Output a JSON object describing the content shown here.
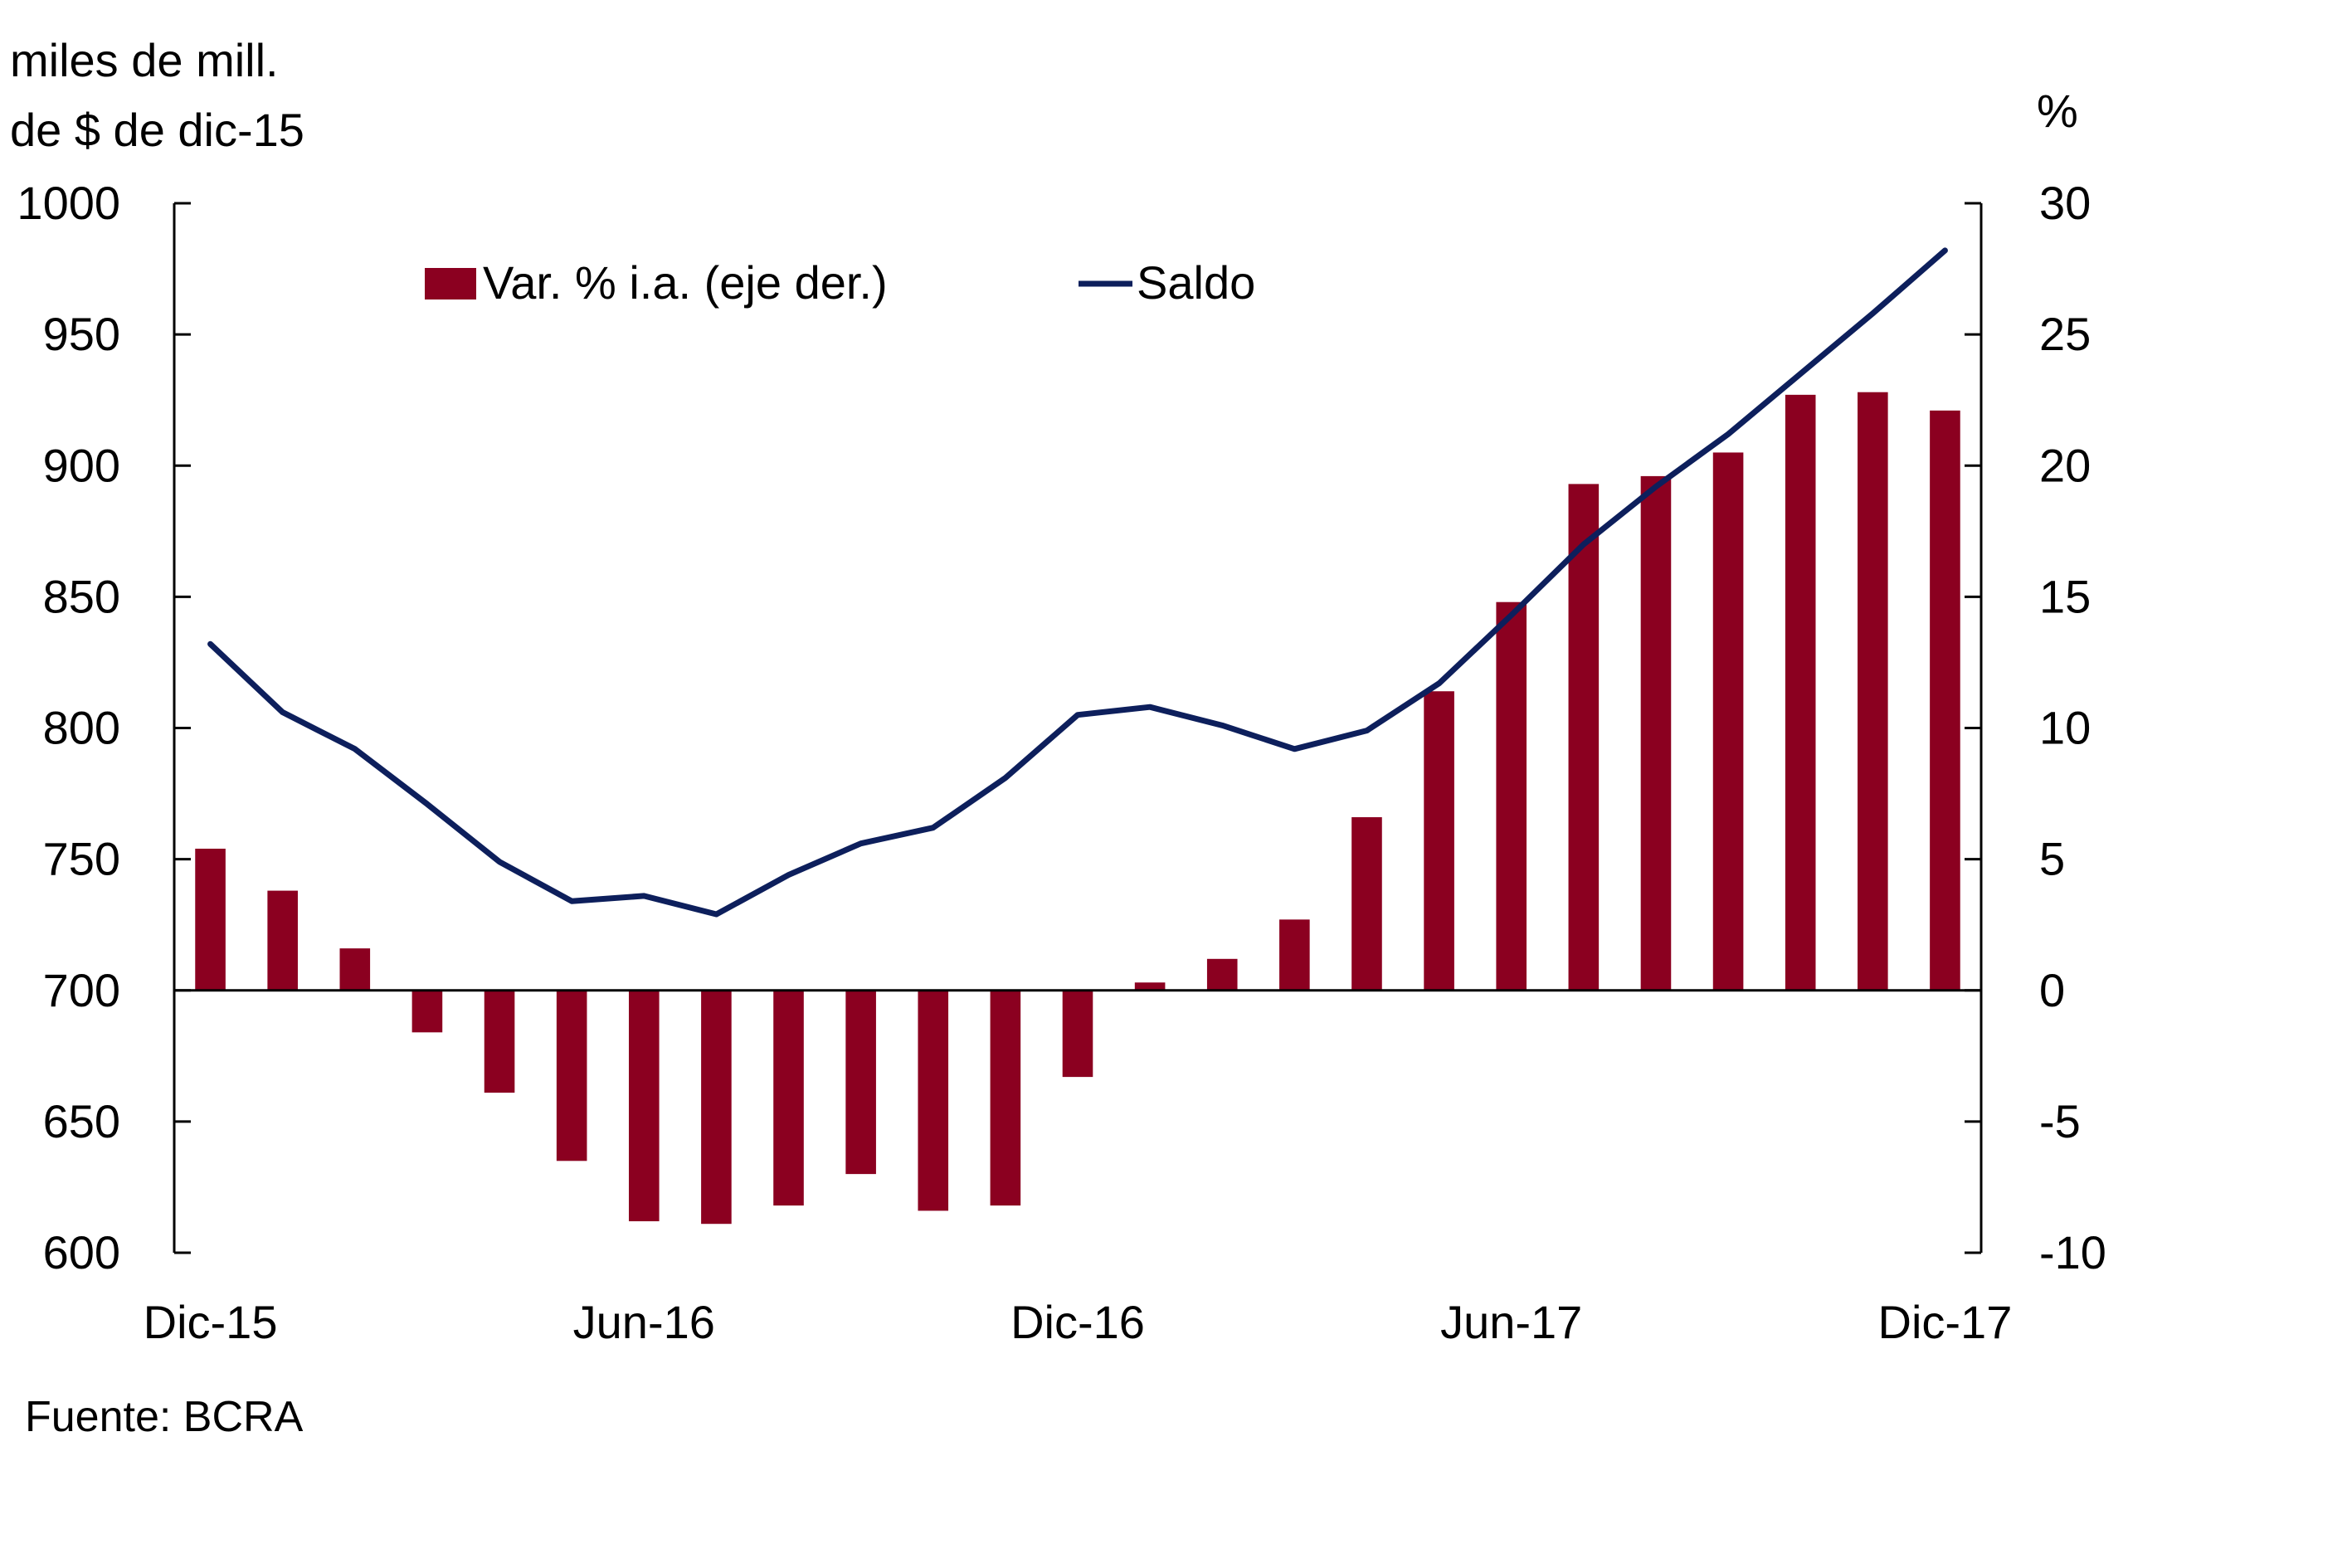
{
  "chart_data": {
    "type": "bar+line",
    "title": "",
    "source": "Fuente: BCRA",
    "left_axis": {
      "unit_line1": "miles de mill.",
      "unit_line2": "de $ de dic-15",
      "range": [
        600,
        1000
      ],
      "ticks": [
        1000,
        950,
        900,
        850,
        800,
        750,
        700,
        650,
        600
      ]
    },
    "right_axis": {
      "unit": "%",
      "range": [
        -10,
        30
      ],
      "ticks": [
        30,
        25,
        20,
        15,
        10,
        5,
        0,
        -5,
        -10
      ]
    },
    "x_labels": [
      {
        "index": 0,
        "label": "Dic-15"
      },
      {
        "index": 6,
        "label": "Jun-16"
      },
      {
        "index": 12,
        "label": "Dic-16"
      },
      {
        "index": 18,
        "label": "Jun-17"
      },
      {
        "index": 24,
        "label": "Dic-17"
      }
    ],
    "months": [
      "dic-15",
      "ene-16",
      "feb-16",
      "mar-16",
      "abr-16",
      "may-16",
      "jun-16",
      "jul-16",
      "ago-16",
      "sep-16",
      "oct-16",
      "nov-16",
      "dic-16",
      "ene-17",
      "feb-17",
      "mar-17",
      "abr-17",
      "may-17",
      "jun-17",
      "jul-17",
      "ago-17",
      "sep-17",
      "oct-17",
      "nov-17",
      "dic-17"
    ],
    "series": [
      {
        "name": "Var. % i.a. (eje der.)",
        "type": "bar",
        "axis": "right",
        "color": "#8B0020",
        "values": [
          5.4,
          3.8,
          1.6,
          -1.6,
          -3.9,
          -6.5,
          -8.8,
          -8.9,
          -8.2,
          -7.0,
          -8.4,
          -8.2,
          -3.3,
          0.3,
          1.2,
          2.7,
          6.6,
          11.4,
          14.8,
          19.3,
          19.6,
          20.5,
          22.7,
          22.8,
          22.1
        ]
      },
      {
        "name": "Saldo",
        "type": "line",
        "axis": "left",
        "color": "#0D1F5C",
        "values": [
          832,
          806,
          792,
          771,
          749,
          734,
          736,
          729,
          744,
          756,
          762,
          781,
          805,
          808,
          801,
          792,
          799,
          817,
          843,
          870,
          892,
          912,
          935,
          958,
          982
        ]
      }
    ]
  }
}
